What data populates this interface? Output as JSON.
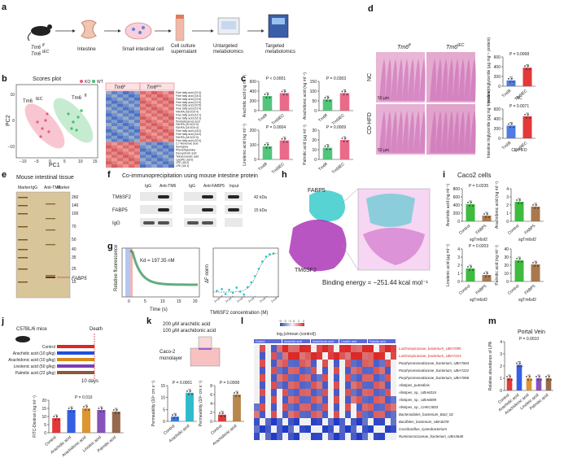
{
  "panel_labels": [
    "a",
    "b",
    "c",
    "d",
    "e",
    "f",
    "g",
    "h",
    "i",
    "j",
    "k",
    "l",
    "m"
  ],
  "colors": {
    "ko": "#e85a7c",
    "wt": "#3fbf6e",
    "control": "#e02424",
    "arachidonic": "#1f4fe0",
    "linolenic": "#7a3fb4",
    "linoleic": "#d88a1a",
    "palmitic": "#8a5a3a",
    "cyan": "#19c6c6",
    "magenta": "#a21caf",
    "blue": "#1f6fe0",
    "green": "#2ab42a",
    "brown": "#a06a3a"
  },
  "a": {
    "mouse": "Tm6",
    "mouse_sup": "fl",
    "mouse2": "Tm6",
    "mouse2_sup": "IEC",
    "steps": [
      "Intestine",
      "Small intestinal cell",
      "Cell culture supernatant",
      "Untargeted metabolomics",
      "Targeted metabolomics"
    ]
  },
  "b": {
    "title": "Scores plot",
    "xlabel": "PC1",
    "ylabel": "PC2",
    "legend": [
      "KO",
      "WT"
    ],
    "xticks": [
      "−10",
      "−5",
      "0",
      "5",
      "10",
      "15"
    ],
    "yticks": [
      "10",
      "0",
      "−10"
    ],
    "group1": "Tm6",
    "group1_sup": "IEC",
    "group2": "Tm6",
    "group2_sup": "fl",
    "heat_head1": "Tm6fl",
    "heat_head2": "Tm6IEC",
    "heat_labels": [
      "Free fatty acid (20:4)",
      "Free fatty acid (18:3)",
      "Free fatty acid (22:6)",
      "Free fatty acid (22:5)",
      "Free fatty acid (20:5)",
      "Free fatty acid (22:4)",
      "FAHFA (18:0/20:4)",
      "Free fatty acid (22:1)",
      "Free fatty acid (16:1)",
      "Pentadecanoic acid",
      "FAHFA (20:4/22:0)",
      "FAHFA (18:3/20:4)",
      "Free fatty acid (18:2)",
      "Free fatty acid (16:0)",
      "FAHFA (18:4/22:0)",
      "Free fatty acid (20:4)",
      "2,7-Nonenoic acid",
      "Syringone",
      "Phenethylamine",
      "Deoxycholic acid",
      "Tetracosanoic acid",
      "LysoPE (18:0)",
      "LPE (18:2)",
      "LPE (18:1)"
    ]
  },
  "c": {
    "charts": [
      {
        "ylabel": "Arachidic acid (ng ml⁻¹)",
        "p": "P < 0.0001",
        "yticks": [
          "600",
          "400",
          "200",
          "0"
        ],
        "cats": [
          "Tm6fl",
          "Tm6IEC"
        ],
        "values": [
          300,
          360
        ]
      },
      {
        "ylabel": "Arachidonic acid (ng ml⁻¹)",
        "p": "P = 0.0303",
        "yticks": [
          "150",
          "100",
          "50",
          "0"
        ],
        "cats": [
          "Tm6fl",
          "Tm6IEC"
        ],
        "values": [
          58,
          90
        ]
      },
      {
        "ylabel": "Linolenic acid (ng ml⁻¹)",
        "p": "P = 0.0004",
        "yticks": [
          "200",
          "100",
          "0"
        ],
        "cats": [
          "Tm6fl",
          "Tm6IEC"
        ],
        "values": [
          90,
          130
        ]
      },
      {
        "ylabel": "Palmitic acid (µg ml⁻¹)",
        "p": "P = 0.0009",
        "yticks": [
          "30",
          "20",
          "10",
          "0"
        ],
        "cats": [
          "Tm6fl",
          "Tm6IEC"
        ],
        "values": [
          12,
          20
        ]
      }
    ]
  },
  "d": {
    "col1": "Tm6fl",
    "col2": "Tm6IEC",
    "row1": "NC",
    "row2": "CD-HFD",
    "scale": "50 µm",
    "charts": [
      {
        "ylabel": "Intestine triglyceride (µg mg⁻¹ protein)",
        "p": "P = 0.0068",
        "group": "NC",
        "cats": [
          "Tm6fl",
          "Tm6IEC"
        ],
        "values": [
          120,
          380
        ],
        "yticks": [
          "600",
          "400",
          "200",
          "0"
        ]
      },
      {
        "ylabel": "Intestine triglyceride (µg mg⁻¹ protein)",
        "p": "P = 0.0071",
        "group": "CD-HFD",
        "cats": [
          "Tm6fl",
          "Tm6IEC"
        ],
        "values": [
          260,
          450
        ],
        "yticks": [
          "600",
          "400",
          "200",
          "0"
        ]
      }
    ]
  },
  "e": {
    "title": "Mouse intestinal tissue",
    "lanes": [
      "Marker",
      "IgG",
      "Anti-TM6",
      "Marker"
    ],
    "markers": [
      "260",
      "140",
      "100",
      "70",
      "50",
      "40",
      "35",
      "25",
      "15"
    ],
    "fabp5": "FABP5"
  },
  "f": {
    "title": "Co-immunoprecipitation using mouse intestine protein",
    "lanes": [
      "IgG",
      "Anti-TM6",
      "IgG",
      "Anti-FABP5",
      "Input"
    ],
    "rows": [
      "TM6SF2",
      "FABP5",
      "IgG"
    ],
    "kda": [
      "42 kDa",
      "15 kDa"
    ]
  },
  "g": {
    "kd": "Kd = 197.35 nM",
    "ylabel": "Relative fluorescence",
    "xlabel": "Time (s)",
    "xticks": [
      "0",
      "5",
      "10",
      "15",
      "20"
    ],
    "ylabel2": "ΔF norm",
    "xlabel2": "TM6SF2 concentration (M)",
    "xticks2": [
      "1×10⁻¹⁰",
      "1×10⁻⁹",
      "1×10⁻⁸",
      "1×10⁻⁷",
      "1×10⁻⁶",
      "1×10⁻⁵"
    ],
    "binding_x": [
      -10.0,
      -9.6,
      -9.3,
      -9.0,
      -8.7,
      -8.4,
      -8.1,
      -7.8,
      -7.5,
      -7.2,
      -6.9,
      -6.6,
      -6.3,
      -6.0,
      -5.7,
      -5.4
    ],
    "binding_y": [
      0.5,
      1.2,
      -0.8,
      0.9,
      -0.3,
      1.8,
      0.2,
      -1.0,
      2.0,
      4.0,
      6.5,
      9.5,
      12.5,
      14.5,
      15.5,
      15.8
    ]
  },
  "h": {
    "top": "FABP5",
    "bottom": "TM6SF2",
    "energy": "Binding energy = −251.44 kcal mol⁻¹"
  },
  "i": {
    "title": "Caco2 cells",
    "charts": [
      {
        "ylabel": "Arachidic acid (ng ml⁻¹)",
        "p": "P = 0.0235",
        "cats": [
          "Control",
          "FABP5"
        ],
        "values": [
          420,
          140
        ],
        "yticks": [
          "800",
          "600",
          "400",
          "200",
          "0"
        ],
        "group": "sgTm6sf2"
      },
      {
        "ylabel": "Arachidonic acid (ng ml⁻¹)",
        "p": "",
        "cats": [
          "Control",
          "FABP5"
        ],
        "values": [
          2.4,
          1.8
        ],
        "yticks": [
          "4",
          "3",
          "2",
          "1",
          "0"
        ],
        "group": "sgTm6sf2"
      },
      {
        "ylabel": "Linolenic acid (µg ml⁻¹)",
        "p": "P = 0.0203",
        "cats": [
          "Control",
          "FABP5"
        ],
        "values": [
          1.6,
          0.8
        ],
        "yticks": [
          "4",
          "3",
          "2",
          "1",
          "0"
        ],
        "group": "sgTm6sf2"
      },
      {
        "ylabel": "Palmitic acid (ng ml⁻¹)",
        "p": "",
        "cats": [
          "Control",
          "FABP5"
        ],
        "values": [
          26,
          21
        ],
        "yticks": [
          "40",
          "30",
          "20",
          "10",
          "0"
        ],
        "group": "sgTm6sf2"
      }
    ]
  },
  "j": {
    "mouse": "C57BL/6 mice",
    "death": "Death",
    "diets": [
      "Control",
      "Arachidic acid (10 g/kg)",
      "Arachidonic acid (10 g/kg)",
      "Linolenic acid (50 g/kg)",
      "Palmitic acid (22 g/kg)"
    ],
    "days": "10 days",
    "chart": {
      "ylabel": "FITC-Dextran (ng ml⁻¹)",
      "p1": "P = 0.0388",
      "p2": "P = 0.010",
      "cats": [
        "Control",
        "Arachidic acid",
        "Arachidonic acid",
        "Linoleic acid",
        "Palmitic acid"
      ],
      "values": [
        9,
        14,
        15,
        14,
        13
      ],
      "yticks": [
        "20",
        "15",
        "10",
        "5",
        "0"
      ]
    }
  },
  "k": {
    "line1": "200 µM arachidic acid",
    "line2": "100 µM arachidonic acid",
    "cell": "Caco-2 monolayer",
    "charts": [
      {
        "ylabel": "Permeability (10⁶ cm s⁻¹)",
        "p": "P = 0.0001",
        "cats": [
          "Control",
          "Arachidic acid"
        ],
        "values": [
          2,
          12
        ],
        "yticks": [
          "15",
          "10",
          "5",
          "0"
        ]
      },
      {
        "ylabel": "Permeability (10⁶ cm s⁻¹)",
        "p": "P = 0.0008",
        "cats": [
          "Control",
          "Arachidonic acid"
        ],
        "values": [
          1.5,
          6
        ],
        "yticks": [
          "8",
          "6",
          "4",
          "2",
          "0"
        ]
      }
    ]
  },
  "l": {
    "scale_title": "log₂(x/mean (control))",
    "scale_ticks": [
      "−3",
      "−2",
      "−1",
      "0",
      "1",
      "2"
    ],
    "groups": [
      "Control",
      "Arachidic acid",
      "Arachidonic acid",
      "Linoleic acid",
      "Palmitic acid"
    ],
    "rows": [
      "Lachnospiraceae_bacterium_UBA7095",
      "Lachnospiraceae_bacterium_UBA7223",
      "Porphyromonadaceae_bacterium_UBA7663",
      "Porphyromonadaceae_bacterium_UBA7222",
      "Porphyromonadaceae_bacterium_UBA7066",
      "Alistipes_putredinis",
      "Alistipes_sp._UBA6334",
      "Alistipes_sp._UBA6698",
      "Alistipes_sp._CHKCI003",
      "Bacteroidales_bacterium_Bact_02",
      "Bacillales_bacterium_UBA8378",
      "Caccibacillus_cyanobacterium",
      "Ruminococcaceae_bacterium_UBA3648"
    ],
    "red_rows": [
      0,
      1
    ]
  },
  "m": {
    "title": "Portal Vein",
    "ylabel": "Relative abundance of LPA",
    "p": "P = 0.0010",
    "yticks": [
      "4",
      "3",
      "2",
      "1",
      "0"
    ],
    "chart_data": {
      "type": "bar",
      "categories": [
        "Control",
        "Arachidic acid",
        "Arachidonic acid",
        "Linoleic acid",
        "Palmitic acid"
      ],
      "values": [
        1.0,
        2.1,
        1.0,
        1.0,
        1.0
      ],
      "ylim": [
        0,
        4
      ]
    }
  }
}
